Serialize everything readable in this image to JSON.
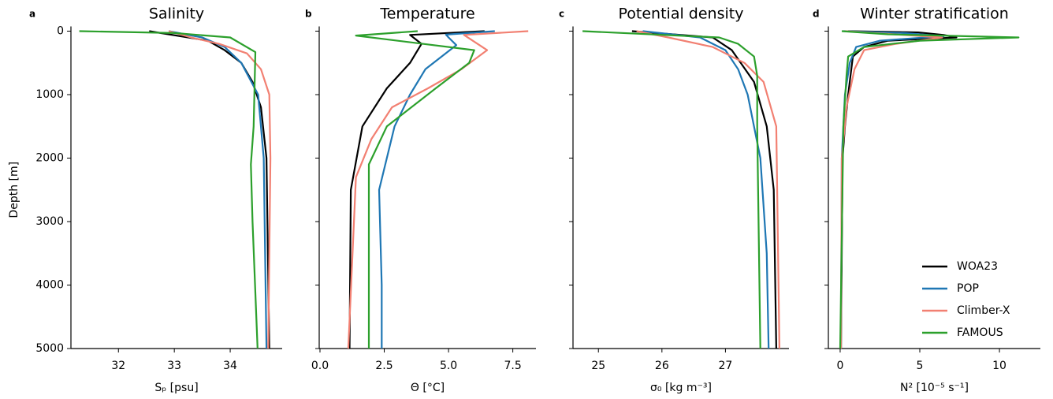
{
  "chart_data": [
    {
      "type": "line",
      "panel_label": "a",
      "title": "Salinity",
      "xlabel": "Sₚ [psu]",
      "ylabel": "Depth [m]",
      "ytick_labels": true,
      "xlim": [
        31.15,
        34.93
      ],
      "xticks": [
        32,
        33,
        34
      ],
      "ylim": [
        0,
        5000
      ],
      "yticks": [
        0,
        1000,
        2000,
        3000,
        4000,
        5000
      ],
      "y_inverted": true,
      "series": [
        {
          "color": "#000000",
          "x": [
            32.55,
            33.6,
            33.9,
            34.2,
            34.4,
            34.55,
            34.65,
            34.7
          ],
          "values": [
            0,
            150,
            300,
            500,
            800,
            1200,
            2000,
            5000
          ]
        },
        {
          "color": "#1f77b4",
          "x": [
            32.9,
            33.5,
            33.9,
            34.2,
            34.5,
            34.6,
            34.65
          ],
          "values": [
            0,
            100,
            250,
            500,
            1000,
            2000,
            5000
          ]
        },
        {
          "color": "#f28072",
          "x": [
            32.9,
            33.3,
            33.8,
            34.3,
            34.55,
            34.7,
            34.72,
            34.68
          ],
          "values": [
            0,
            100,
            200,
            350,
            600,
            1000,
            2000,
            5000
          ]
        },
        {
          "color": "#2ca02c",
          "x": [
            31.3,
            33.0,
            34.0,
            34.45,
            34.42,
            34.37,
            34.4,
            34.49
          ],
          "values": [
            0,
            30,
            100,
            330,
            1500,
            2100,
            3000,
            5000
          ]
        }
      ]
    },
    {
      "type": "line",
      "panel_label": "b",
      "title": "Temperature",
      "xlabel": "Θ [°C]",
      "ytick_labels": false,
      "xlim": [
        -0.03,
        8.4
      ],
      "xticks": [
        {
          "value": 0,
          "label": "0.0"
        },
        2.5,
        {
          "value": 5,
          "label": "5.0"
        },
        7.5
      ],
      "ylim": [
        0,
        5000
      ],
      "yticks": [
        0,
        1000,
        2000,
        3000,
        4000,
        5000
      ],
      "y_inverted": true,
      "series": [
        {
          "color": "#000000",
          "x": [
            6.4,
            3.5,
            3.95,
            3.5,
            2.6,
            1.65,
            1.2,
            1.15
          ],
          "values": [
            0,
            60,
            200,
            500,
            900,
            1500,
            2500,
            5000
          ]
        },
        {
          "color": "#1f77b4",
          "x": [
            6.8,
            4.9,
            5.0,
            5.3,
            4.1,
            3.5,
            2.9,
            2.3,
            2.4,
            2.4
          ],
          "values": [
            0,
            55,
            100,
            220,
            600,
            1000,
            1500,
            2500,
            4000,
            5000
          ]
        },
        {
          "color": "#f28072",
          "x": [
            8.1,
            5.6,
            6.5,
            5.5,
            4.2,
            2.8,
            2.0,
            1.4,
            1.1
          ],
          "values": [
            0,
            60,
            300,
            600,
            900,
            1200,
            1700,
            2300,
            5000
          ]
        },
        {
          "color": "#2ca02c",
          "x": [
            3.8,
            1.4,
            6.0,
            5.8,
            4.5,
            2.6,
            1.9,
            1.9
          ],
          "values": [
            0,
            70,
            300,
            500,
            900,
            1500,
            2100,
            5000
          ]
        }
      ]
    },
    {
      "type": "line",
      "panel_label": "c",
      "title": "Potential density",
      "xlabel": "σ₀ [kg m⁻³]",
      "ytick_labels": false,
      "xlim": [
        24.6,
        28.0
      ],
      "xticks": [
        25,
        26,
        27
      ],
      "ylim": [
        0,
        5000
      ],
      "yticks": [
        0,
        1000,
        2000,
        3000,
        4000,
        5000
      ],
      "y_inverted": true,
      "series": [
        {
          "color": "#000000",
          "x": [
            25.53,
            26.8,
            27.1,
            27.45,
            27.65,
            27.76,
            27.8
          ],
          "values": [
            0,
            100,
            300,
            800,
            1500,
            2500,
            5000
          ]
        },
        {
          "color": "#1f77b4",
          "x": [
            25.7,
            26.6,
            27.0,
            27.2,
            27.35,
            27.55,
            27.65,
            27.68
          ],
          "values": [
            0,
            100,
            300,
            600,
            1000,
            2000,
            3500,
            5000
          ]
        },
        {
          "color": "#f28072",
          "x": [
            25.6,
            26.1,
            26.8,
            27.3,
            27.6,
            27.8,
            27.85
          ],
          "values": [
            0,
            100,
            250,
            500,
            800,
            1500,
            5000
          ]
        },
        {
          "color": "#2ca02c",
          "x": [
            24.75,
            26.9,
            27.2,
            27.45,
            27.5,
            27.5,
            27.55
          ],
          "values": [
            0,
            100,
            200,
            400,
            700,
            1500,
            5000
          ]
        }
      ]
    },
    {
      "type": "line",
      "panel_label": "d",
      "title": "Winter stratification",
      "xlabel": "N² [10⁻⁵ s⁻¹]",
      "ytick_labels": false,
      "legend": "lower right",
      "xlim": [
        -0.74,
        12.57
      ],
      "xticks": [
        0,
        5,
        10
      ],
      "ylim": [
        0,
        5000
      ],
      "yticks": [
        0,
        1000,
        2000,
        3000,
        4000,
        5000
      ],
      "y_inverted": true,
      "series": [
        {
          "name": "WOA23",
          "color": "#000000",
          "x": [
            0.5,
            4.9,
            6.5,
            7.3,
            3,
            1.5,
            0.8,
            0.5,
            0.3,
            0.15,
            0.05
          ],
          "values": [
            0,
            20,
            60,
            100,
            150,
            250,
            400,
            1000,
            1500,
            2000,
            5000
          ]
        },
        {
          "name": "POP",
          "color": "#1f77b4",
          "x": [
            0.2,
            4,
            6.5,
            2.5,
            1.0,
            0.6,
            0.3,
            0.1,
            0.05
          ],
          "values": [
            0,
            30,
            80,
            150,
            250,
            500,
            1000,
            2000,
            5000
          ]
        },
        {
          "name": "Climber-X",
          "color": "#f28072",
          "x": [
            0.3,
            4,
            6.4,
            3.5,
            1.5,
            0.9,
            0.4,
            0.1,
            0.05
          ],
          "values": [
            0,
            60,
            100,
            200,
            300,
            600,
            1200,
            2000,
            5000
          ]
        },
        {
          "name": "FAMOUS",
          "color": "#2ca02c",
          "x": [
            0.1,
            3,
            11.2,
            5,
            1.5,
            0.5,
            0.4,
            0.2,
            0
          ],
          "values": [
            0,
            50,
            100,
            150,
            250,
            400,
            700,
            1500,
            5000
          ]
        }
      ]
    }
  ]
}
